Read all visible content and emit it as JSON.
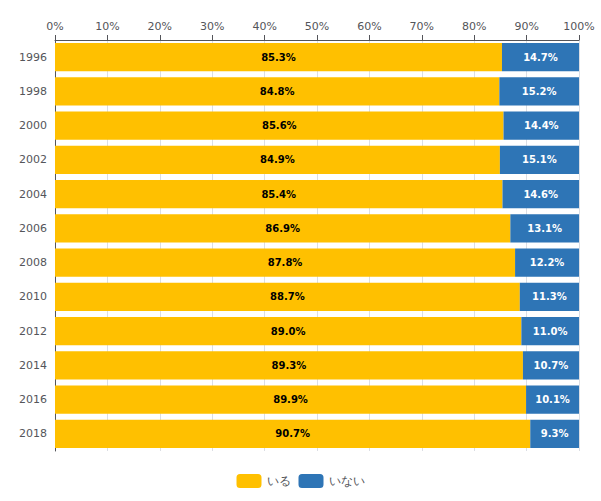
{
  "chart_data": {
    "type": "bar",
    "orientation": "horizontal",
    "stacked": true,
    "categories": [
      "1996",
      "1998",
      "2000",
      "2002",
      "2004",
      "2006",
      "2008",
      "2010",
      "2012",
      "2014",
      "2016",
      "2018"
    ],
    "series": [
      {
        "name": "いる",
        "color": "#FFC000",
        "values": [
          85.3,
          84.8,
          85.6,
          84.9,
          85.4,
          86.9,
          87.8,
          88.7,
          89.0,
          89.3,
          89.9,
          90.7
        ],
        "value_labels": [
          "85.3%",
          "84.8%",
          "85.6%",
          "84.9%",
          "85.4%",
          "86.9%",
          "87.8%",
          "88.7%",
          "89.0%",
          "89.3%",
          "89.9%",
          "90.7%"
        ]
      },
      {
        "name": "いない",
        "color": "#2E75B6",
        "values": [
          14.7,
          15.2,
          14.4,
          15.1,
          14.6,
          13.1,
          12.2,
          11.3,
          11.0,
          10.7,
          10.1,
          9.3
        ],
        "value_labels": [
          "14.7%",
          "15.2%",
          "14.4%",
          "15.1%",
          "14.6%",
          "13.1%",
          "12.2%",
          "11.3%",
          "11.0%",
          "10.7%",
          "10.1%",
          "9.3%"
        ]
      }
    ],
    "xlim": [
      0,
      100
    ],
    "xticks": [
      {
        "value": 0,
        "label": "0%"
      },
      {
        "value": 10,
        "label": "10%"
      },
      {
        "value": 20,
        "label": "20%"
      },
      {
        "value": 30,
        "label": "30%"
      },
      {
        "value": 40,
        "label": "40%"
      },
      {
        "value": 50,
        "label": "50%"
      },
      {
        "value": 60,
        "label": "60%"
      },
      {
        "value": 70,
        "label": "70%"
      },
      {
        "value": 80,
        "label": "80%"
      },
      {
        "value": 90,
        "label": "90%"
      },
      {
        "value": 100,
        "label": "100%"
      }
    ],
    "grid": true,
    "legend": "bottom",
    "data_labels": true
  }
}
